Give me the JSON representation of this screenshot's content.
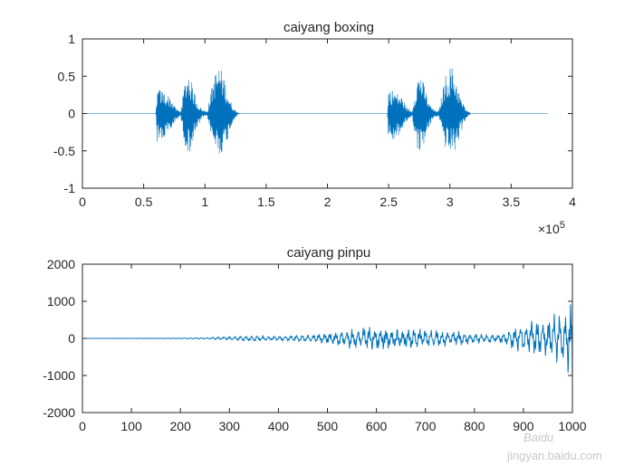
{
  "chart_data": [
    {
      "type": "line",
      "title": "caiyang boxing",
      "xlabel": "",
      "ylabel": "",
      "xlim": [
        0,
        400000
      ],
      "ylim": [
        -1,
        1
      ],
      "x_ticks": [
        0,
        50000,
        100000,
        150000,
        200000,
        250000,
        300000,
        350000,
        400000
      ],
      "x_tick_labels": [
        "0",
        "0.5",
        "1",
        "1.5",
        "2",
        "2.5",
        "3",
        "3.5",
        "4"
      ],
      "y_ticks": [
        -1,
        -0.5,
        0,
        0.5,
        1
      ],
      "y_tick_labels": [
        "-1",
        "-0.5",
        "0",
        "0.5",
        "1"
      ],
      "x_exponent_label": "×10",
      "x_exponent_power": "5",
      "grid": false,
      "color": "#0072BD",
      "signal_x_end": 380000,
      "envelope_points": [
        {
          "x": 0,
          "upper": 0,
          "lower": 0
        },
        {
          "x": 60000,
          "upper": 0,
          "lower": 0
        },
        {
          "x": 61000,
          "upper": 0.34,
          "lower": -0.4
        },
        {
          "x": 66000,
          "upper": 0.3,
          "lower": -0.36
        },
        {
          "x": 72000,
          "upper": 0.22,
          "lower": -0.24
        },
        {
          "x": 76000,
          "upper": 0.08,
          "lower": -0.1
        },
        {
          "x": 80000,
          "upper": 0.02,
          "lower": -0.03
        },
        {
          "x": 84000,
          "upper": 0.46,
          "lower": -0.45
        },
        {
          "x": 86500,
          "upper": 0.58,
          "lower": -0.55
        },
        {
          "x": 90000,
          "upper": 0.38,
          "lower": -0.4
        },
        {
          "x": 94000,
          "upper": 0.14,
          "lower": -0.2
        },
        {
          "x": 98000,
          "upper": 0.05,
          "lower": -0.05
        },
        {
          "x": 102000,
          "upper": 0.03,
          "lower": -0.04
        },
        {
          "x": 107000,
          "upper": 0.5,
          "lower": -0.45
        },
        {
          "x": 112000,
          "upper": 0.66,
          "lower": -0.55
        },
        {
          "x": 116000,
          "upper": 0.48,
          "lower": -0.5
        },
        {
          "x": 120000,
          "upper": 0.2,
          "lower": -0.25
        },
        {
          "x": 124000,
          "upper": 0.06,
          "lower": -0.07
        },
        {
          "x": 128000,
          "upper": 0,
          "lower": 0
        },
        {
          "x": 249000,
          "upper": 0,
          "lower": 0
        },
        {
          "x": 250000,
          "upper": 0.34,
          "lower": -0.4
        },
        {
          "x": 255000,
          "upper": 0.3,
          "lower": -0.36
        },
        {
          "x": 261000,
          "upper": 0.22,
          "lower": -0.24
        },
        {
          "x": 265000,
          "upper": 0.08,
          "lower": -0.1
        },
        {
          "x": 269000,
          "upper": 0.02,
          "lower": -0.03
        },
        {
          "x": 273000,
          "upper": 0.46,
          "lower": -0.45
        },
        {
          "x": 275500,
          "upper": 0.58,
          "lower": -0.55
        },
        {
          "x": 279000,
          "upper": 0.38,
          "lower": -0.4
        },
        {
          "x": 283000,
          "upper": 0.14,
          "lower": -0.2
        },
        {
          "x": 287000,
          "upper": 0.05,
          "lower": -0.05
        },
        {
          "x": 291000,
          "upper": 0.03,
          "lower": -0.04
        },
        {
          "x": 296000,
          "upper": 0.5,
          "lower": -0.45
        },
        {
          "x": 301000,
          "upper": 0.66,
          "lower": -0.55
        },
        {
          "x": 305000,
          "upper": 0.48,
          "lower": -0.5
        },
        {
          "x": 309000,
          "upper": 0.2,
          "lower": -0.25
        },
        {
          "x": 313000,
          "upper": 0.06,
          "lower": -0.07
        },
        {
          "x": 317000,
          "upper": 0,
          "lower": 0
        },
        {
          "x": 380000,
          "upper": 0,
          "lower": 0
        }
      ]
    },
    {
      "type": "line",
      "title": "caiyang pinpu",
      "xlabel": "",
      "ylabel": "",
      "xlim": [
        0,
        1000
      ],
      "ylim": [
        -2000,
        2000
      ],
      "x_ticks": [
        0,
        100,
        200,
        300,
        400,
        500,
        600,
        700,
        800,
        900,
        1000
      ],
      "x_tick_labels": [
        "0",
        "100",
        "200",
        "300",
        "400",
        "500",
        "600",
        "700",
        "800",
        "900",
        "1000"
      ],
      "y_ticks": [
        -2000,
        -1000,
        0,
        1000,
        2000
      ],
      "y_tick_labels": [
        "-2000",
        "-1000",
        "0",
        "1000",
        "2000"
      ],
      "grid": false,
      "color": "#0072BD",
      "envelope_points": [
        {
          "x": 0,
          "amp": 0
        },
        {
          "x": 150,
          "amp": 5
        },
        {
          "x": 250,
          "amp": 20
        },
        {
          "x": 300,
          "amp": 60
        },
        {
          "x": 350,
          "amp": 80
        },
        {
          "x": 400,
          "amp": 70
        },
        {
          "x": 450,
          "amp": 90
        },
        {
          "x": 500,
          "amp": 160
        },
        {
          "x": 550,
          "amp": 260
        },
        {
          "x": 600,
          "amp": 340
        },
        {
          "x": 650,
          "amp": 300
        },
        {
          "x": 700,
          "amp": 250
        },
        {
          "x": 750,
          "amp": 200
        },
        {
          "x": 800,
          "amp": 140
        },
        {
          "x": 850,
          "amp": 120
        },
        {
          "x": 880,
          "amp": 320
        },
        {
          "x": 930,
          "amp": 500
        },
        {
          "x": 960,
          "amp": 600
        },
        {
          "x": 985,
          "amp": 750
        },
        {
          "x": 995,
          "amp": 1100
        },
        {
          "x": 1000,
          "amp": 1000
        }
      ]
    }
  ],
  "watermark": {
    "brand": "Baidu",
    "sub": "jingyan.baidu.com"
  }
}
